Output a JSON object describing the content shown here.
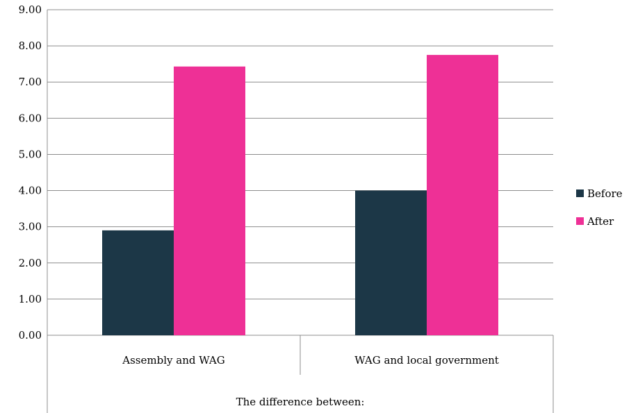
{
  "chart_data": {
    "type": "bar",
    "categories": [
      "Assembly and WAG",
      "WAG and local government"
    ],
    "group_label": "The difference between:",
    "series": [
      {
        "name": "Before",
        "values": [
          2.9,
          4.0
        ],
        "color": "#1c3747"
      },
      {
        "name": "After",
        "values": [
          7.43,
          7.75
        ],
        "color": "#ee3096"
      }
    ],
    "ylim": [
      0,
      9
    ],
    "yticks": [
      "0.00",
      "1.00",
      "2.00",
      "3.00",
      "4.00",
      "5.00",
      "6.00",
      "7.00",
      "8.00",
      "9.00"
    ],
    "grid": true,
    "legend_position": "right"
  }
}
